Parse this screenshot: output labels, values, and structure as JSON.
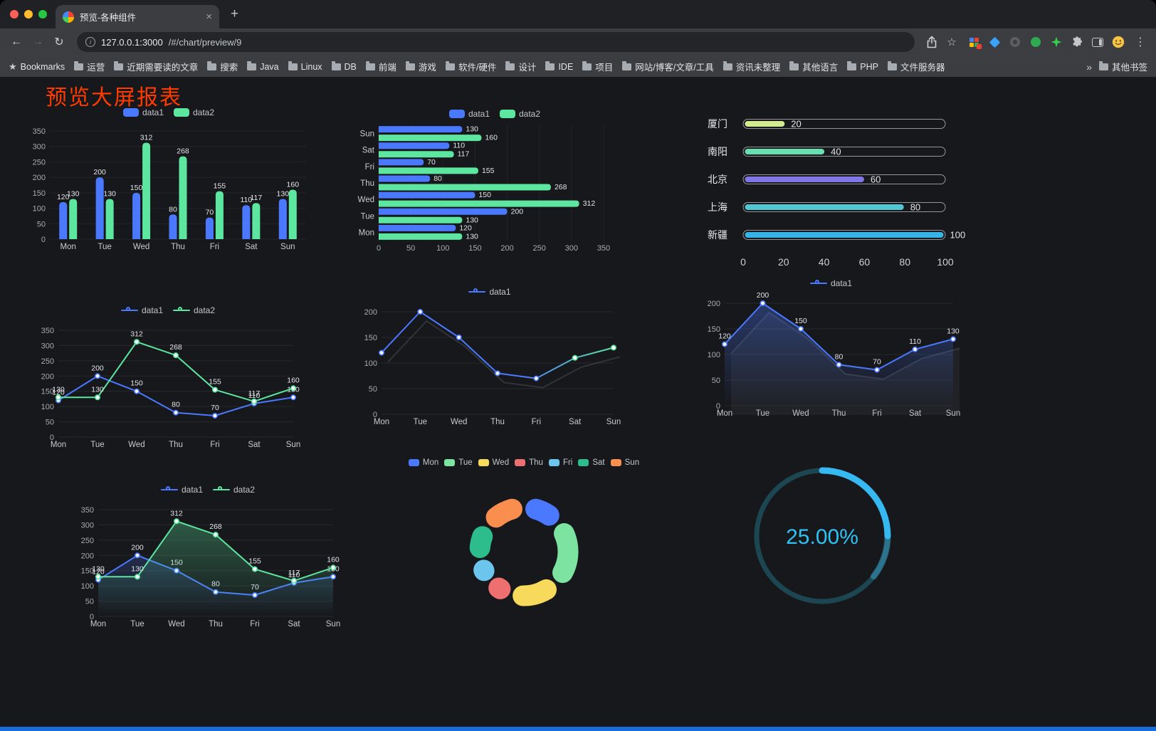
{
  "browser": {
    "tab": {
      "title": "预览-各种组件",
      "close_glyph": "×",
      "new_tab_glyph": "+"
    },
    "nav": {
      "back_glyph": "←",
      "forward_glyph": "→",
      "reload_glyph": "↻",
      "info_glyph": "i",
      "star_glyph": "☆",
      "menu_glyph": "⋮"
    },
    "address": {
      "host": "127.0.0.1:3000",
      "path": "/#/chart/preview/9"
    },
    "bookmarks_bar": {
      "star_glyph": "★",
      "bookmarks_label": "Bookmarks",
      "items": [
        "运营",
        "近期需要读的文章",
        "搜索",
        "Java",
        "Linux",
        "DB",
        "前端",
        "游戏",
        "软件/硬件",
        "设计",
        "IDE",
        "项目",
        "网站/博客/文章/工具",
        "资讯未整理",
        "其他语言",
        "PHP",
        "文件服务器"
      ],
      "overflow_glyph": "»",
      "other_bookmarks_label": "其他书签"
    }
  },
  "page": {
    "title": "预览大屏报表",
    "title_color": "#ff3b00",
    "accent_bar_color": "#1a6dd8"
  },
  "chart_data": [
    {
      "id": "grouped-bar",
      "type": "bar",
      "categories": [
        "Mon",
        "Tue",
        "Wed",
        "Thu",
        "Fri",
        "Sat",
        "Sun"
      ],
      "series": [
        {
          "name": "data1",
          "color": "#4a79ff",
          "values": [
            120,
            200,
            150,
            80,
            70,
            110,
            130
          ]
        },
        {
          "name": "data2",
          "color": "#5ce6a0",
          "values": [
            130,
            130,
            312,
            268,
            155,
            117,
            160
          ]
        }
      ],
      "ylim": [
        0,
        350
      ],
      "yticks": [
        0,
        50,
        100,
        150,
        200,
        250,
        300,
        350
      ],
      "legend": "top",
      "grid": true
    },
    {
      "id": "horizontal-bar",
      "type": "barh",
      "categories": [
        "Mon",
        "Tue",
        "Wed",
        "Thu",
        "Fri",
        "Sat",
        "Sun"
      ],
      "series": [
        {
          "name": "data1",
          "color": "#4a79ff",
          "values": [
            120,
            200,
            150,
            80,
            70,
            110,
            130
          ]
        },
        {
          "name": "data2",
          "color": "#5ce6a0",
          "values": [
            130,
            130,
            312,
            268,
            155,
            117,
            160
          ]
        }
      ],
      "xlim": [
        0,
        350
      ],
      "xticks": [
        0,
        50,
        100,
        150,
        200,
        250,
        300,
        350
      ],
      "legend": "top",
      "grid": true
    },
    {
      "id": "capsule-ranking",
      "type": "capsule",
      "items": [
        {
          "label": "厦门",
          "value": 20,
          "color": "#d2ec8f"
        },
        {
          "label": "南阳",
          "value": 40,
          "color": "#66dfb2"
        },
        {
          "label": "北京",
          "value": 60,
          "color": "#8277e8"
        },
        {
          "label": "上海",
          "value": 80,
          "color": "#52c7d3"
        },
        {
          "label": "新疆",
          "value": 100,
          "color": "#36b4e6"
        }
      ],
      "xlim": [
        0,
        100
      ],
      "xticks": [
        0,
        20,
        40,
        60,
        80,
        100
      ]
    },
    {
      "id": "line-two-series",
      "type": "line",
      "categories": [
        "Mon",
        "Tue",
        "Wed",
        "Thu",
        "Fri",
        "Sat",
        "Sun"
      ],
      "series": [
        {
          "name": "data1",
          "color": "#4a79ff",
          "values": [
            120,
            200,
            150,
            80,
            70,
            110,
            130
          ]
        },
        {
          "name": "data2",
          "color": "#5ce6a0",
          "values": [
            130,
            130,
            312,
            268,
            155,
            117,
            160
          ]
        }
      ],
      "ylim": [
        0,
        350
      ],
      "yticks": [
        0,
        50,
        100,
        150,
        200,
        250,
        300,
        350
      ],
      "legend": "top",
      "show_labels": true
    },
    {
      "id": "gradient-line",
      "type": "line",
      "categories": [
        "Mon",
        "Tue",
        "Wed",
        "Thu",
        "Fri",
        "Sat",
        "Sun"
      ],
      "series": [
        {
          "name": "data1",
          "color": "#4a79ff",
          "color2": "#5ce6a0",
          "values": [
            120,
            200,
            150,
            80,
            70,
            110,
            130
          ]
        }
      ],
      "ylim": [
        0,
        200
      ],
      "yticks": [
        0,
        50,
        100,
        150,
        200
      ],
      "legend": "top",
      "show_labels": false,
      "shadow": true
    },
    {
      "id": "area-line",
      "type": "line",
      "categories": [
        "Mon",
        "Tue",
        "Wed",
        "Thu",
        "Fri",
        "Sat",
        "Sun"
      ],
      "series": [
        {
          "name": "data1",
          "color": "#4a79ff",
          "values": [
            120,
            200,
            150,
            80,
            70,
            110,
            130
          ],
          "area": true,
          "area_opacity": 0.35
        }
      ],
      "ylim": [
        0,
        200
      ],
      "yticks": [
        0,
        50,
        100,
        150,
        200
      ],
      "legend": "top",
      "show_labels": true,
      "shadow": true
    },
    {
      "id": "area-line-two-series",
      "type": "line",
      "categories": [
        "Mon",
        "Tue",
        "Wed",
        "Thu",
        "Fri",
        "Sat",
        "Sun"
      ],
      "series": [
        {
          "name": "data1",
          "color": "#4a79ff",
          "values": [
            120,
            200,
            150,
            80,
            70,
            110,
            130
          ],
          "area": true,
          "area_opacity": 0.22
        },
        {
          "name": "data2",
          "color": "#5ce6a0",
          "values": [
            130,
            130,
            312,
            268,
            155,
            117,
            160
          ],
          "area": true,
          "area_opacity": 0.32
        }
      ],
      "ylim": [
        0,
        350
      ],
      "yticks": [
        0,
        50,
        100,
        150,
        200,
        250,
        300,
        350
      ],
      "legend": "top",
      "show_labels": true
    },
    {
      "id": "donut",
      "type": "donut",
      "categories": [
        "Mon",
        "Tue",
        "Wed",
        "Thu",
        "Fri",
        "Sat",
        "Sun"
      ],
      "values": [
        120,
        200,
        150,
        80,
        70,
        110,
        130
      ],
      "colors": [
        "#4a79ff",
        "#7de3a0",
        "#f7d95c",
        "#ee6f6f",
        "#6cc5ec",
        "#2dbd8d",
        "#f98e4e"
      ],
      "legend": "top"
    },
    {
      "id": "gauge",
      "type": "gauge",
      "percent": 25,
      "value_label": "25.00%",
      "ring_color": "#1c4752",
      "arc_color": "#35b9f0",
      "text_color": "#2fc2f4"
    }
  ]
}
